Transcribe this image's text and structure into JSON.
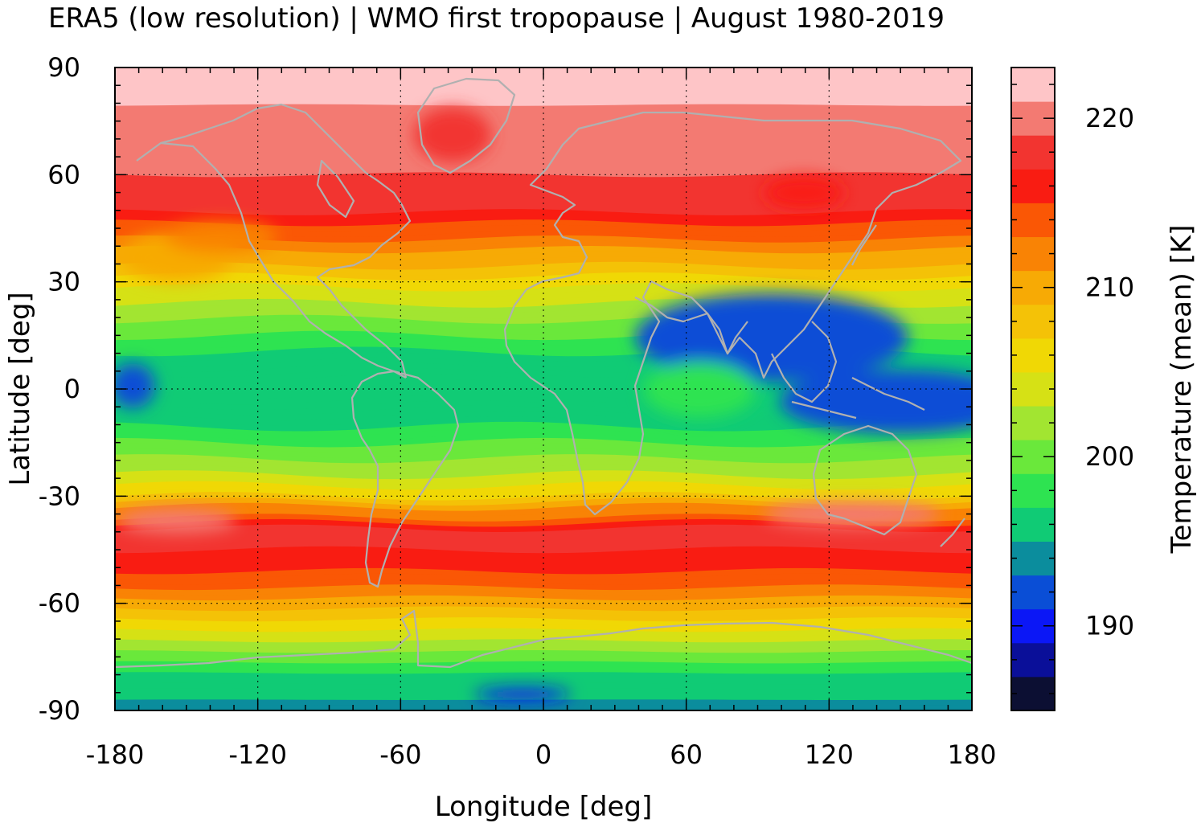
{
  "title": "ERA5 (low resolution) | WMO first tropopause | August 1980-2019",
  "chart_data": {
    "type": "heatmap",
    "title": "ERA5 (low resolution) | WMO first tropopause | August 1980-2019",
    "xlabel": "Longitude [deg]",
    "ylabel": "Latitude [deg]",
    "xlim": [
      -180,
      180
    ],
    "ylim": [
      -90,
      90
    ],
    "x_ticks": [
      "-180",
      "-120",
      "-60",
      "0",
      "60",
      "120",
      "180"
    ],
    "y_ticks": [
      "90",
      "60",
      "30",
      "0",
      "-30",
      "-60",
      "-90"
    ],
    "grid": true,
    "coastlines_color": "#b0b0b0",
    "colorbar": {
      "label": "Temperature (mean) [K]",
      "range": [
        185,
        223
      ],
      "tick_labels": [
        "220",
        "210",
        "200",
        "190"
      ],
      "levels": [
        185,
        187,
        189,
        191,
        193,
        195,
        197,
        199,
        201,
        203,
        205,
        207,
        209,
        211,
        213,
        215,
        217,
        219,
        221,
        223
      ],
      "colors": [
        "#0c0f33",
        "#0a0f99",
        "#0b17f6",
        "#0a4ed6",
        "#0b8d9d",
        "#10cb75",
        "#2ee351",
        "#6ae83b",
        "#a2e531",
        "#d6e115",
        "#f0d805",
        "#f4c207",
        "#f7aa05",
        "#f98305",
        "#fa5705",
        "#f91c12",
        "#f23430",
        "#f37a72",
        "#fec5c7"
      ]
    },
    "zonal_mean_profile": {
      "lat": [
        90,
        80,
        70,
        60,
        50,
        40,
        30,
        20,
        10,
        0,
        -10,
        -20,
        -30,
        -40,
        -50,
        -60,
        -70,
        -80,
        -90
      ],
      "temperature": [
        222,
        221,
        220,
        219,
        217,
        212,
        206,
        201,
        197,
        196,
        197,
        201,
        207,
        218,
        216,
        210,
        203,
        197,
        194
      ]
    }
  }
}
